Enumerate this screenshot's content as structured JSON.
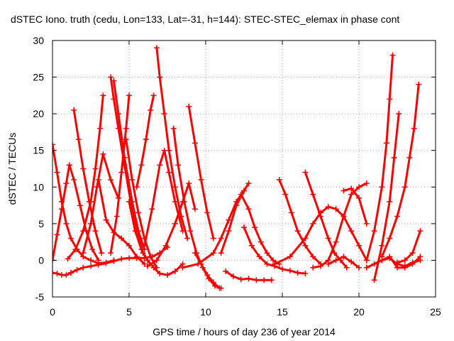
{
  "chart_data": {
    "type": "line",
    "title": "dSTEC Iono. truth (cedu, Lon=133, Lat=-31, h=144): STEC-STEC_elemax in phase cont",
    "xlabel": "GPS time / hours of day 236 of year 2014",
    "ylabel": "dSTEC  / TECUs",
    "xlim": [
      0,
      25
    ],
    "ylim": [
      -5,
      30
    ],
    "xticks": [
      0,
      5,
      10,
      15,
      20,
      25
    ],
    "yticks": [
      -5,
      0,
      5,
      10,
      15,
      20,
      25,
      30
    ],
    "grid": true,
    "marker": "plus",
    "color": "#ff0000",
    "series": [
      {
        "x": [
          0.0,
          0.3,
          0.6,
          0.9,
          1.2,
          1.6,
          2.0,
          2.5,
          3.0,
          3.5,
          4.0
        ],
        "y": [
          15.8,
          12.0,
          8.0,
          5.0,
          3.0,
          1.5,
          0.5,
          0.0,
          -0.4,
          -0.3,
          0.0
        ]
      },
      {
        "x": [
          0.0,
          0.3,
          0.6,
          0.9,
          1.2
        ],
        "y": [
          -1.7,
          -1.8,
          -2.0,
          -2.0,
          -1.7
        ]
      },
      {
        "x": [
          1.2,
          1.6,
          2.0,
          2.5,
          3.0,
          3.5,
          4.0,
          4.5,
          5.0,
          5.5,
          6.0,
          6.5,
          7.0,
          7.5
        ],
        "y": [
          -1.7,
          -1.3,
          -1.0,
          -0.8,
          -0.6,
          -0.4,
          -0.1,
          0.2,
          0.3,
          0.3,
          0.3,
          0.5,
          1.0,
          1.8
        ]
      },
      {
        "x": [
          0.0,
          0.3,
          0.6,
          0.9,
          1.1
        ],
        "y": [
          0.0,
          3.5,
          7.0,
          10.5,
          13.0
        ]
      },
      {
        "x": [
          1.1,
          1.4,
          1.8,
          2.2,
          2.6,
          3.0
        ],
        "y": [
          13.0,
          11.0,
          7.5,
          4.0,
          1.5,
          0.0
        ]
      },
      {
        "x": [
          1.4,
          1.7,
          2.0,
          2.4,
          2.8,
          3.2
        ],
        "y": [
          20.5,
          16.5,
          12.5,
          8.0,
          4.0,
          1.0
        ]
      },
      {
        "x": [
          1.0,
          1.5,
          2.0,
          2.5,
          2.8,
          3.1,
          3.3
        ],
        "y": [
          0.2,
          1.5,
          4.0,
          8.0,
          12.5,
          18.0,
          22.5
        ]
      },
      {
        "x": [
          2.0,
          2.5,
          2.9,
          3.3,
          3.8,
          4.3
        ],
        "y": [
          1.0,
          5.0,
          10.0,
          14.5,
          11.0,
          8.5
        ]
      },
      {
        "x": [
          3.0,
          3.5,
          4.0,
          4.5,
          5.0,
          5.5,
          6.0
        ],
        "y": [
          11.0,
          5.5,
          3.8,
          3.0,
          2.0,
          0.5,
          -0.5
        ]
      },
      {
        "x": [
          3.8,
          4.0,
          4.3,
          4.7,
          5.1,
          5.5,
          5.9
        ],
        "y": [
          25.0,
          22.0,
          18.0,
          13.0,
          8.0,
          4.0,
          1.0
        ]
      },
      {
        "x": [
          4.0,
          4.3,
          4.7,
          5.2,
          5.6,
          6.0
        ],
        "y": [
          24.5,
          20.0,
          14.0,
          8.0,
          4.0,
          1.5
        ]
      },
      {
        "x": [
          3.8,
          4.2,
          4.5,
          4.8,
          5.0
        ],
        "y": [
          1.0,
          6.0,
          12.0,
          18.0,
          22.5
        ]
      },
      {
        "x": [
          4.8,
          5.2,
          5.6,
          6.0,
          6.4,
          6.8
        ],
        "y": [
          16.5,
          11.0,
          6.5,
          3.0,
          0.5,
          -1.0
        ]
      },
      {
        "x": [
          5.0,
          5.4,
          5.8,
          6.2,
          6.6,
          7.0,
          7.5,
          8.0,
          8.5
        ],
        "y": [
          8.0,
          4.0,
          1.5,
          0.0,
          -1.0,
          -1.8,
          -2.0,
          -1.5,
          -0.5
        ]
      },
      {
        "x": [
          5.5,
          5.8,
          6.1,
          6.4,
          6.6
        ],
        "y": [
          10.0,
          13.0,
          16.5,
          20.5,
          22.5
        ]
      },
      {
        "x": [
          6.8,
          7.0,
          7.3,
          7.6,
          8.0,
          8.4,
          8.8
        ],
        "y": [
          29.0,
          25.0,
          20.0,
          15.0,
          10.0,
          6.0,
          3.0
        ]
      },
      {
        "x": [
          6.0,
          6.5,
          7.0,
          7.3,
          7.6,
          8.0,
          8.5
        ],
        "y": [
          2.0,
          7.0,
          13.0,
          15.0,
          12.0,
          8.0,
          4.0
        ]
      },
      {
        "x": [
          6.2,
          6.8,
          7.4,
          8.0,
          8.5,
          8.9,
          9.3
        ],
        "y": [
          -0.8,
          0.0,
          2.0,
          5.0,
          8.0,
          10.5,
          7.0
        ]
      },
      {
        "x": [
          7.9,
          8.2,
          8.6,
          9.0,
          9.4,
          9.8,
          10.2,
          10.6,
          11.0
        ],
        "y": [
          18.0,
          13.0,
          8.0,
          4.0,
          1.0,
          -1.0,
          -2.5,
          -3.5,
          -3.8
        ]
      },
      {
        "x": [
          8.9,
          9.3,
          9.7,
          10.1,
          10.5
        ],
        "y": [
          21.0,
          16.0,
          11.0,
          6.5,
          3.0
        ]
      },
      {
        "x": [
          9.3,
          9.7,
          10.1,
          10.5,
          10.9
        ],
        "y": [
          1.0,
          -0.5,
          -2.0,
          -3.0,
          -3.8
        ]
      },
      {
        "x": [
          11.0,
          11.5,
          12.0,
          12.5,
          12.8
        ],
        "y": [
          1.0,
          4.0,
          7.5,
          9.5,
          10.5
        ]
      },
      {
        "x": [
          8.5,
          9.5,
          10.5,
          11.0,
          11.5,
          12.0,
          12.5
        ],
        "y": [
          -1.0,
          -0.5,
          1.0,
          3.0,
          5.5,
          8.0,
          9.5
        ]
      },
      {
        "x": [
          11.3,
          11.8,
          12.3,
          12.8,
          13.3,
          13.8,
          14.3
        ],
        "y": [
          -1.5,
          -2.2,
          -2.6,
          -2.5,
          -2.7,
          -2.7,
          -2.7
        ]
      },
      {
        "x": [
          12.3,
          12.8,
          13.2,
          13.6,
          14.0,
          14.4,
          14.8
        ],
        "y": [
          9.0,
          7.0,
          4.5,
          2.5,
          1.0,
          0.0,
          -0.5
        ]
      },
      {
        "x": [
          12.5,
          13.0,
          13.5,
          14.0,
          14.5,
          15.0,
          15.5,
          16.0,
          16.5
        ],
        "y": [
          4.5,
          2.0,
          0.5,
          -0.5,
          -0.8,
          -1.2,
          -1.4,
          -1.7,
          -1.8
        ]
      },
      {
        "x": [
          14.8,
          15.2,
          15.6,
          16.0,
          16.5,
          17.0,
          17.5
        ],
        "y": [
          11.0,
          9.0,
          6.5,
          4.0,
          2.0,
          0.5,
          -0.5
        ]
      },
      {
        "x": [
          16.5,
          17.0,
          17.5,
          18.0,
          18.4,
          18.8,
          19.2
        ],
        "y": [
          12.0,
          9.0,
          6.0,
          3.0,
          1.0,
          0.0,
          -1.0
        ]
      },
      {
        "x": [
          14.5,
          15.5,
          16.5,
          17.0,
          17.5,
          18.0,
          18.5
        ],
        "y": [
          -0.5,
          0.5,
          3.0,
          5.0,
          6.5,
          7.3,
          7.0
        ]
      },
      {
        "x": [
          18.5,
          19.0,
          19.5,
          20.0,
          20.5
        ],
        "y": [
          7.0,
          6.0,
          4.0,
          2.0,
          0.0
        ]
      },
      {
        "x": [
          17.0,
          17.5,
          18.0,
          18.5,
          19.0,
          19.5,
          20.0,
          20.5
        ],
        "y": [
          -1.0,
          -0.8,
          0.0,
          2.5,
          6.0,
          9.0,
          10.0,
          10.5
        ]
      },
      {
        "x": [
          19.0,
          19.5,
          20.0,
          20.5
        ],
        "y": [
          9.5,
          9.8,
          8.5,
          5.0
        ]
      },
      {
        "x": [
          18.0,
          18.5,
          19.0,
          19.5,
          20.0
        ],
        "y": [
          -0.5,
          0.0,
          0.5,
          -0.2,
          -1.0
        ]
      },
      {
        "x": [
          20.5,
          21.0,
          21.5,
          21.8,
          22.0,
          22.2
        ],
        "y": [
          0.0,
          4.0,
          10.0,
          16.0,
          22.0,
          28.0
        ]
      },
      {
        "x": [
          21.0,
          21.5,
          22.0,
          22.3,
          22.6
        ],
        "y": [
          -2.7,
          2.0,
          8.0,
          14.0,
          20.0
        ]
      },
      {
        "x": [
          21.5,
          22.0,
          22.5,
          23.0,
          23.3,
          23.6,
          23.9
        ],
        "y": [
          0.5,
          3.0,
          6.0,
          10.0,
          14.0,
          18.0,
          24.0
        ]
      },
      {
        "x": [
          20.5,
          21.0,
          21.5,
          22.0,
          22.5,
          23.0,
          23.5,
          24.0
        ],
        "y": [
          -1.0,
          -0.5,
          0.0,
          0.5,
          -1.0,
          -1.0,
          -0.5,
          0.5
        ]
      },
      {
        "x": [
          21.5,
          22.0,
          22.5,
          23.0,
          23.5,
          24.0
        ],
        "y": [
          0.0,
          0.3,
          -0.5,
          -0.8,
          -0.3,
          0.0
        ]
      },
      {
        "x": [
          22.5,
          23.0,
          23.5,
          24.0
        ],
        "y": [
          -0.3,
          0.0,
          1.0,
          4.0
        ]
      }
    ]
  }
}
